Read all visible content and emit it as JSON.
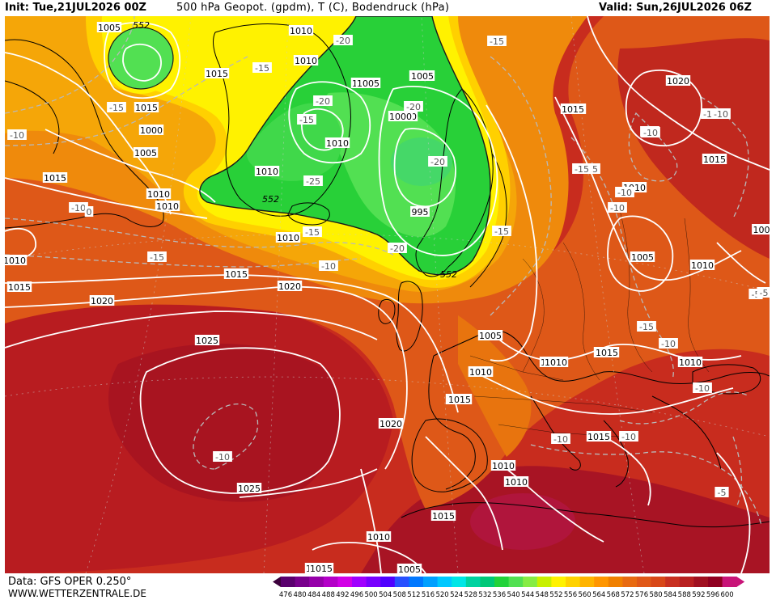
{
  "header": {
    "init": "Init: Tue,21JUL2026 00Z",
    "title": "500 hPa Geopot. (gpdm), T (C), Bodendruck (hPa)",
    "valid": "Valid: Sun,26JUL2026 06Z"
  },
  "footer": {
    "data_source": "Data: GFS OPER 0.250°",
    "website": "WWW.WETTERZENTRALE.DE"
  },
  "colors": {
    "geopot_low_green": "#22d23a",
    "geopot_green_mid": "#52e052",
    "yellow": "#fff200",
    "orange": "#f0a000",
    "dark_orange": "#e06a10",
    "red_orange": "#d84818",
    "red": "#c02020",
    "dark_red": "#a01020",
    "isobar": "#ffffff",
    "isotherm": "#b9b9b9",
    "coast": "#000000"
  },
  "legend": {
    "values": [
      "476",
      "480",
      "484",
      "488",
      "492",
      "496",
      "500",
      "504",
      "508",
      "512",
      "516",
      "520",
      "524",
      "528",
      "532",
      "536",
      "540",
      "544",
      "548",
      "552",
      "556",
      "560",
      "564",
      "568",
      "572",
      "576",
      "580",
      "584",
      "588",
      "592",
      "596",
      "600"
    ],
    "colors": [
      "#3c003c",
      "#5a006e",
      "#78008c",
      "#9600aa",
      "#b400c8",
      "#d200e6",
      "#a000ff",
      "#7800ff",
      "#5000ff",
      "#2850ff",
      "#0078ff",
      "#00a0ff",
      "#00c8ff",
      "#00e6e6",
      "#00d2a0",
      "#00c878",
      "#22d23a",
      "#52e052",
      "#86ec44",
      "#c8f000",
      "#fff200",
      "#ffd200",
      "#ffb400",
      "#ff9600",
      "#f08000",
      "#e86a10",
      "#e05818",
      "#d84818",
      "#c83020",
      "#b82020",
      "#a01020",
      "#900020",
      "#c81478"
    ]
  },
  "isobar_labels": [
    "1005",
    "1010",
    "1015",
    "1010",
    "1015",
    "1005",
    "1010",
    "1005",
    "1000",
    "1005",
    "1020",
    "1015",
    "1010",
    "1010",
    "1015",
    "1010",
    "1010",
    "1005",
    "1020",
    "1015",
    "1025",
    "1010",
    "1015",
    "1020",
    "1020",
    "1010",
    "1015",
    "1025",
    "1005",
    "1010",
    "1015",
    "1010",
    "1010",
    "1015",
    "1010",
    "1005",
    "1010",
    "995",
    "1010",
    "1015",
    "1000",
    "1000",
    "1020",
    "1015",
    "1010",
    "1005",
    "1015",
    "100",
    "1010",
    "1010",
    "1010",
    "1010",
    "1015",
    "1015",
    "1015"
  ],
  "isotherm_labels": [
    "-15",
    "-20",
    "-15",
    "-15",
    "-20",
    "-15",
    "-10",
    "-10",
    "-15",
    "-20",
    "-20",
    "-25",
    "-20",
    "-15",
    "-15",
    "-10",
    "-10",
    "-15",
    "-15",
    "-10",
    "-10",
    "-15",
    "-10",
    "-10",
    "-10",
    "-10",
    "-5",
    "-10",
    "-5",
    "-5",
    "-10",
    "0",
    "-10",
    "-10"
  ],
  "contour_552": [
    "552",
    "552",
    "552"
  ]
}
